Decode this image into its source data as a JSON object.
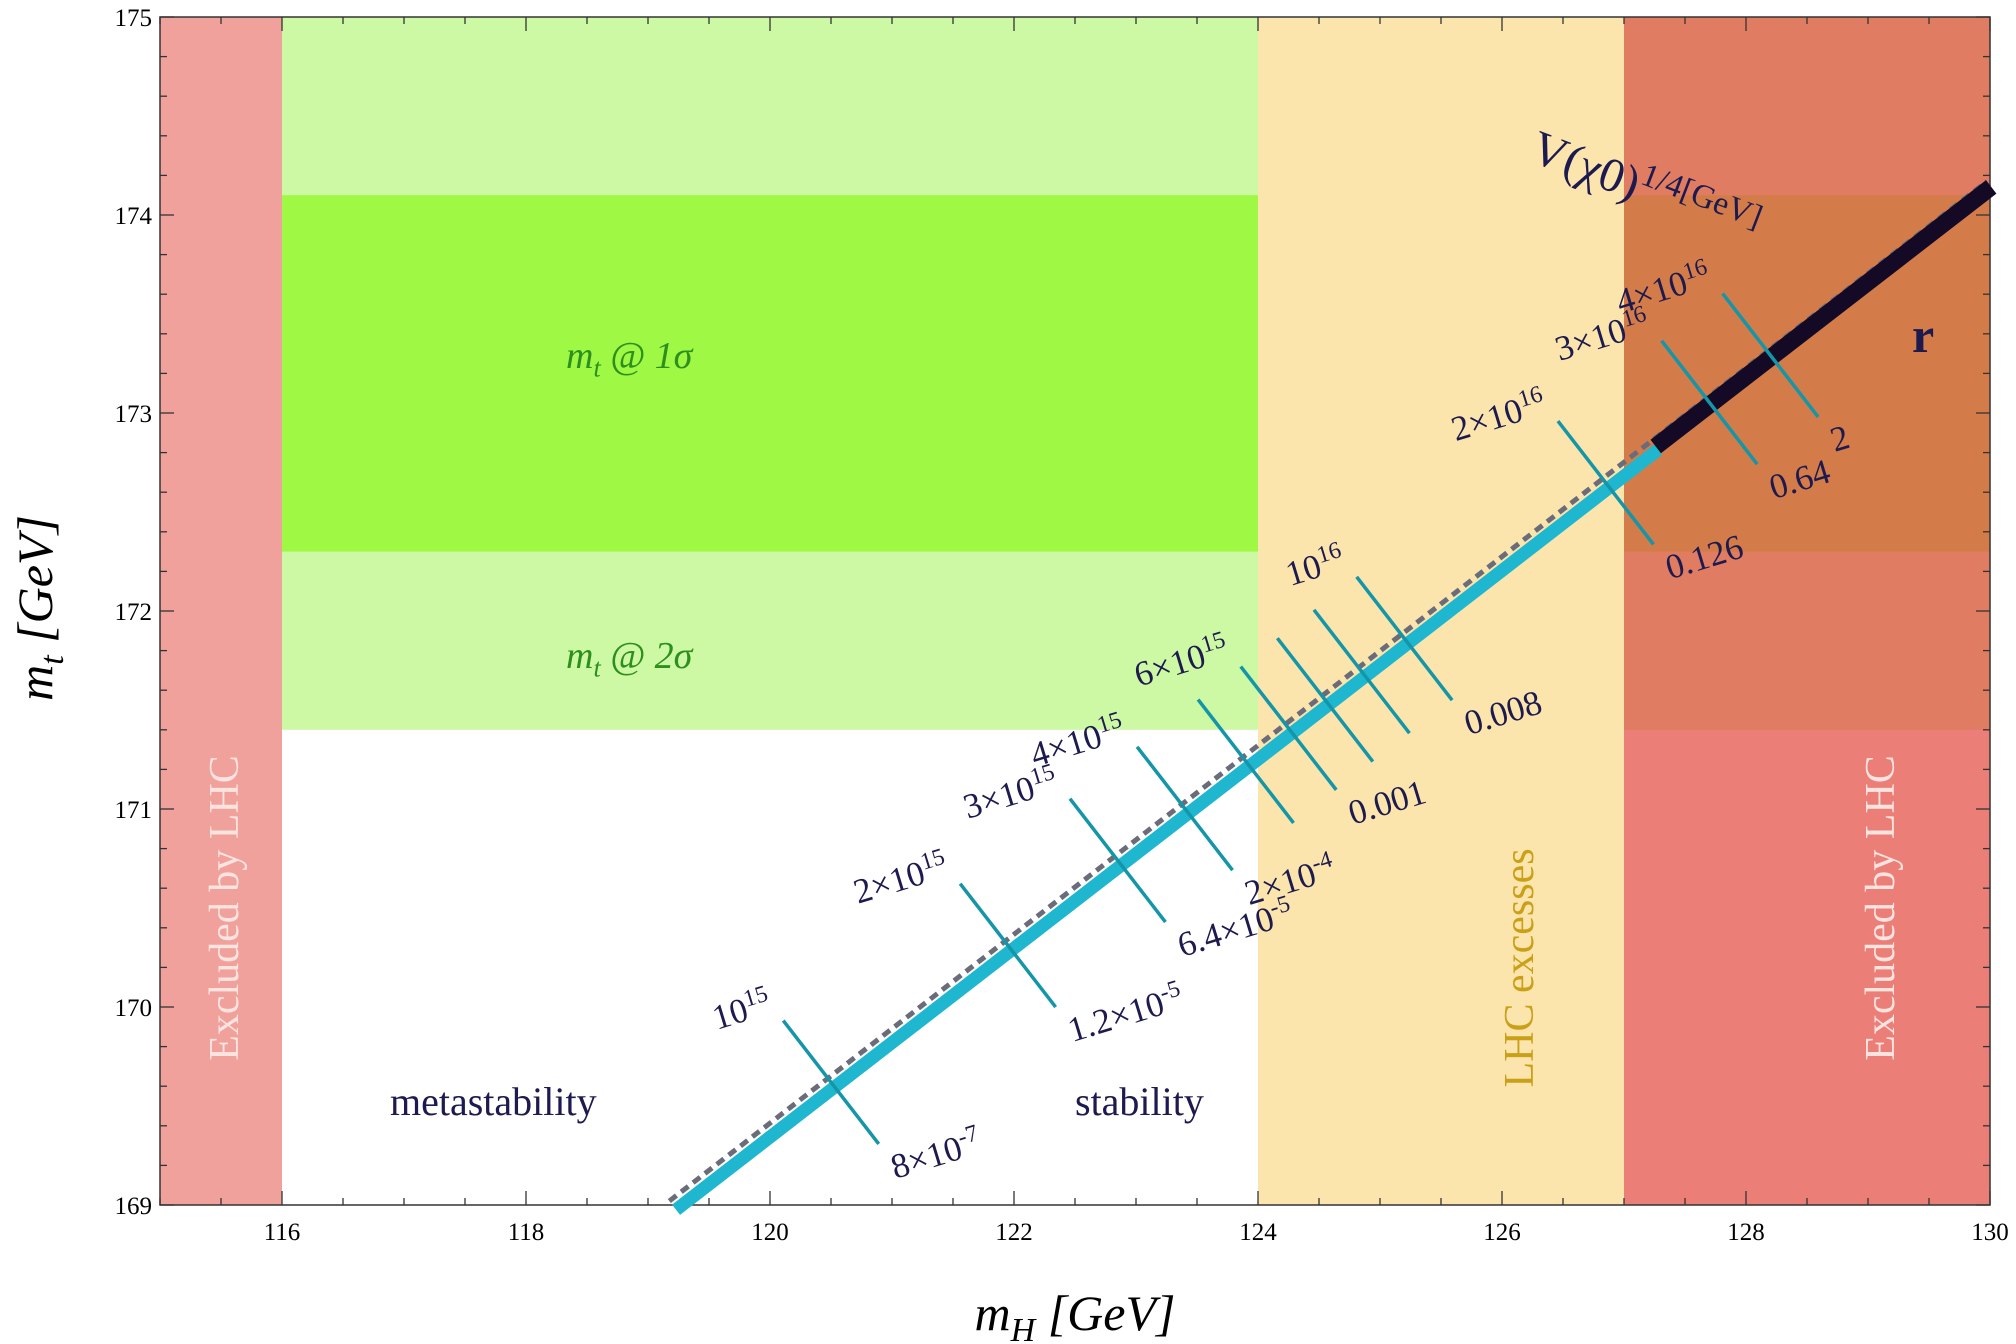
{
  "chart_data": {
    "type": "line",
    "xlabel": "m_H [GeV]",
    "ylabel": "m_t [GeV]",
    "xlim": [
      115,
      130
    ],
    "ylim": [
      169,
      175
    ],
    "x_ticks": [
      "116",
      "118",
      "120",
      "122",
      "124",
      "126",
      "128",
      "130"
    ],
    "y_ticks": [
      "169",
      "170",
      "171",
      "172",
      "173",
      "174",
      "175"
    ],
    "regions": [
      {
        "name": "Excluded by LHC",
        "x": [
          115,
          116
        ],
        "y": [
          169,
          175
        ],
        "color": "#e5534b"
      },
      {
        "name": "Excluded by LHC",
        "x": [
          127,
          130
        ],
        "y": [
          169,
          175
        ],
        "color": "#e5534b"
      },
      {
        "name": "LHC excesses",
        "x": [
          124,
          127
        ],
        "y": [
          169,
          175
        ],
        "color": "#fdebc0"
      },
      {
        "name": "m_t @ 2σ",
        "x": [
          116,
          130
        ],
        "y": [
          171.4,
          175
        ],
        "color": "#c8f79a"
      },
      {
        "name": "m_t @ 1σ",
        "x": [
          116,
          130
        ],
        "y": [
          172.3,
          174.1
        ],
        "color": "#9af73a"
      }
    ],
    "region_labels": {
      "excluded_left": "Excluded by LHC",
      "excluded_right": "Excluded by LHC",
      "lhc_excesses": "LHC excesses",
      "mt_1sigma": "m_t @ 1σ",
      "mt_2sigma": "m_t @ 2σ",
      "metastability": "metastability",
      "stability": "stability"
    },
    "boundary_line": {
      "x": [
        119.2,
        130
      ],
      "y": [
        169,
        174.15
      ]
    },
    "black_segment_start_x": 127.25,
    "markers": [
      {
        "x": 120.5,
        "upper": "10^15",
        "lower": "8×10^-7"
      },
      {
        "x": 121.95,
        "upper": "2×10^15",
        "lower": "1.2×10^-5"
      },
      {
        "x": 122.85,
        "upper": "3×10^15",
        "lower": "6.4×10^-5"
      },
      {
        "x": 123.4,
        "upper": "4×10^15",
        "lower": "2×10^-4"
      },
      {
        "x": 123.9,
        "upper": "",
        "lower": ""
      },
      {
        "x": 124.25,
        "upper": "6×10^15",
        "lower": "0.001"
      },
      {
        "x": 124.55,
        "upper": "",
        "lower": ""
      },
      {
        "x": 124.85,
        "upper": "",
        "lower": ""
      },
      {
        "x": 125.2,
        "upper": "10^16",
        "lower": "0.008"
      },
      {
        "x": 126.85,
        "upper": "2×10^16",
        "lower": "0.126"
      },
      {
        "x": 127.7,
        "upper": "3×10^16",
        "lower": "0.64"
      },
      {
        "x": 128.2,
        "upper": "4×10^16",
        "lower": "2"
      }
    ],
    "upper_axis_label": "V(χ0)^1/4[GeV]",
    "lower_axis_label": "r"
  }
}
